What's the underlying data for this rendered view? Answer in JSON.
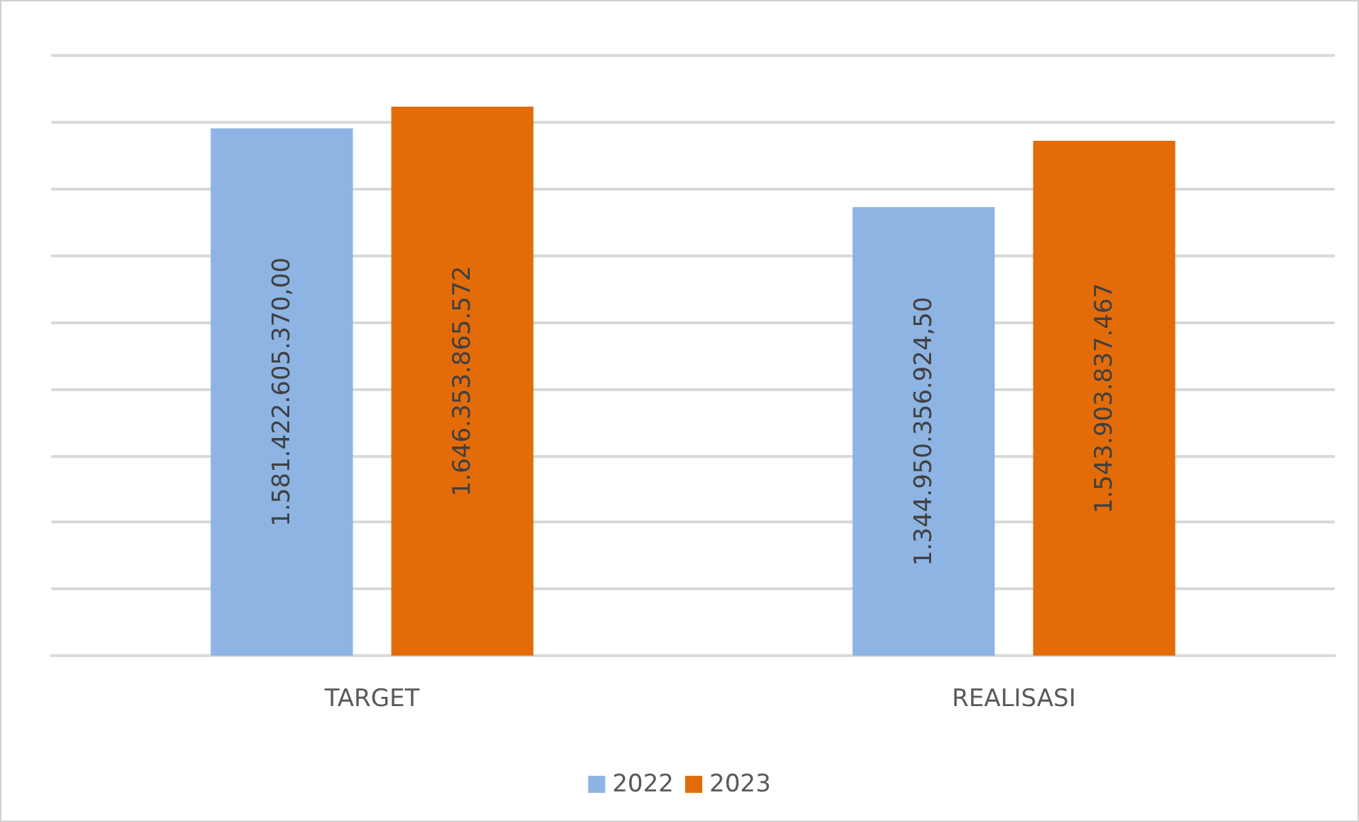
{
  "chart_data": {
    "type": "bar",
    "categories": [
      "TARGET",
      "REALISASI"
    ],
    "series": [
      {
        "name": "2022",
        "color": "#8db4e2",
        "values": [
          1581422605370.0,
          1344950356924.5
        ],
        "value_labels": [
          "1.581.422.605.370,00",
          "1.344.950.356.924,50"
        ]
      },
      {
        "name": "2023",
        "color": "#e36c09",
        "values": [
          1646353865572,
          1543903837467
        ],
        "value_labels": [
          "1.646.353.865.572",
          "1.543.903.837.467"
        ]
      }
    ],
    "ylim": [
      0,
      1800000000000
    ],
    "yticks": [
      {
        "value": 0,
        "label": null
      },
      {
        "value": 200000000000,
        "label": null
      },
      {
        "value": 400000000000,
        "label": null
      },
      {
        "value": 600000000000,
        "label": null
      },
      {
        "value": 800000000000,
        "label": null
      },
      {
        "value": 1000000000000,
        "label": null
      },
      {
        "value": 1200000000000,
        "label": null
      },
      {
        "value": 1400000000000,
        "label": null
      },
      {
        "value": 1600000000000,
        "label": null
      },
      {
        "value": 1800000000000,
        "label": null
      }
    ],
    "grid": true,
    "legend": "bottom",
    "tick_labels": "x"
  }
}
